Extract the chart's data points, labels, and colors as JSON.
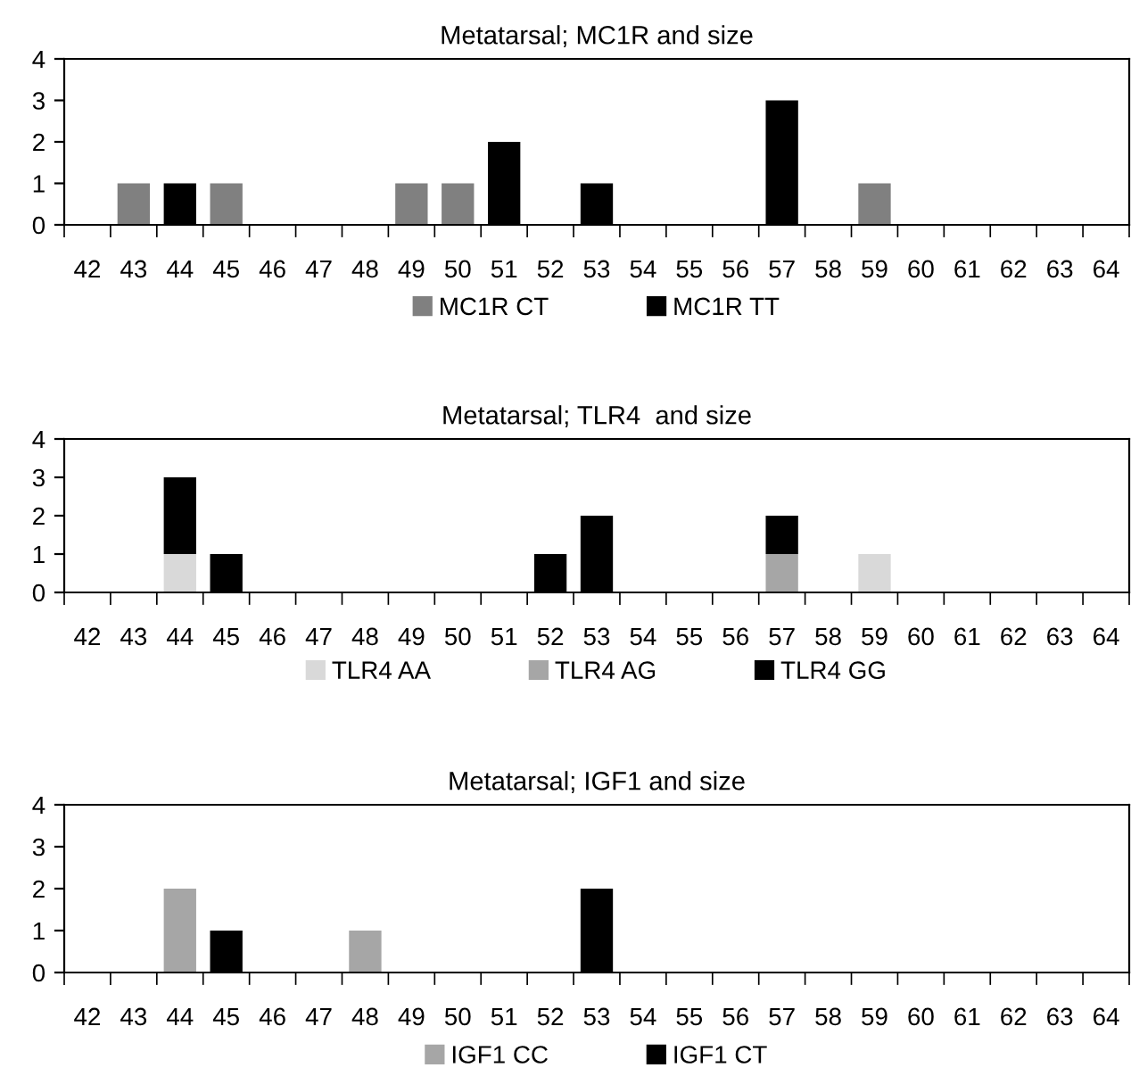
{
  "chart_data": [
    {
      "type": "bar",
      "title": "Metatarsal; MC1R and size",
      "stacked": true,
      "legend": "bottom",
      "ylim": [
        0,
        4
      ],
      "yticks": [
        0,
        1,
        2,
        3,
        4
      ],
      "grid": false,
      "categories": [
        "42",
        "43",
        "44",
        "45",
        "46",
        "47",
        "48",
        "49",
        "50",
        "51",
        "52",
        "53",
        "54",
        "55",
        "56",
        "57",
        "58",
        "59",
        "60",
        "61",
        "62",
        "63",
        "64"
      ],
      "series": [
        {
          "name": "MC1R CT",
          "color": "#808080",
          "values": [
            null,
            1,
            null,
            1,
            null,
            null,
            null,
            1,
            1,
            null,
            null,
            null,
            null,
            null,
            null,
            null,
            null,
            1,
            null,
            null,
            null,
            null,
            null
          ]
        },
        {
          "name": "MC1R TT",
          "color": "#000000",
          "values": [
            null,
            null,
            1,
            null,
            null,
            null,
            null,
            null,
            null,
            2,
            null,
            1,
            null,
            null,
            null,
            3,
            null,
            null,
            null,
            null,
            null,
            null,
            null
          ]
        }
      ]
    },
    {
      "type": "bar",
      "title": "Metatarsal; TLR4  and size",
      "stacked": true,
      "legend": "bottom",
      "ylim": [
        0,
        4
      ],
      "yticks": [
        0,
        1,
        2,
        3,
        4
      ],
      "grid": false,
      "categories": [
        "42",
        "43",
        "44",
        "45",
        "46",
        "47",
        "48",
        "49",
        "50",
        "51",
        "52",
        "53",
        "54",
        "55",
        "56",
        "57",
        "58",
        "59",
        "60",
        "61",
        "62",
        "63",
        "64"
      ],
      "series": [
        {
          "name": "TLR4 AA",
          "color": "#d9d9d9",
          "values": [
            null,
            null,
            1,
            null,
            null,
            null,
            null,
            null,
            null,
            null,
            null,
            null,
            null,
            null,
            null,
            null,
            null,
            1,
            null,
            null,
            null,
            null,
            null
          ]
        },
        {
          "name": "TLR4 AG",
          "color": "#a6a6a6",
          "values": [
            null,
            null,
            null,
            null,
            null,
            null,
            null,
            null,
            null,
            null,
            null,
            null,
            null,
            null,
            null,
            1,
            null,
            null,
            null,
            null,
            null,
            null,
            null
          ]
        },
        {
          "name": "TLR4 GG",
          "color": "#000000",
          "values": [
            null,
            null,
            2,
            1,
            null,
            null,
            null,
            null,
            null,
            null,
            1,
            2,
            null,
            null,
            null,
            1,
            null,
            null,
            null,
            null,
            null,
            null,
            null
          ]
        }
      ]
    },
    {
      "type": "bar",
      "title": "Metatarsal; IGF1 and size",
      "stacked": true,
      "legend": "bottom",
      "ylim": [
        0,
        4
      ],
      "yticks": [
        0,
        1,
        2,
        3,
        4
      ],
      "grid": false,
      "categories": [
        "42",
        "43",
        "44",
        "45",
        "46",
        "47",
        "48",
        "49",
        "50",
        "51",
        "52",
        "53",
        "54",
        "55",
        "56",
        "57",
        "58",
        "59",
        "60",
        "61",
        "62",
        "63",
        "64"
      ],
      "series": [
        {
          "name": "IGF1 CC",
          "color": "#a6a6a6",
          "values": [
            null,
            null,
            2,
            null,
            null,
            null,
            1,
            null,
            null,
            null,
            null,
            null,
            null,
            null,
            null,
            null,
            null,
            null,
            null,
            null,
            null,
            null,
            null
          ]
        },
        {
          "name": "IGF1 CT",
          "color": "#000000",
          "values": [
            null,
            null,
            null,
            1,
            null,
            null,
            null,
            null,
            null,
            null,
            null,
            2,
            null,
            null,
            null,
            null,
            null,
            null,
            null,
            null,
            null,
            null,
            null
          ]
        }
      ]
    }
  ]
}
